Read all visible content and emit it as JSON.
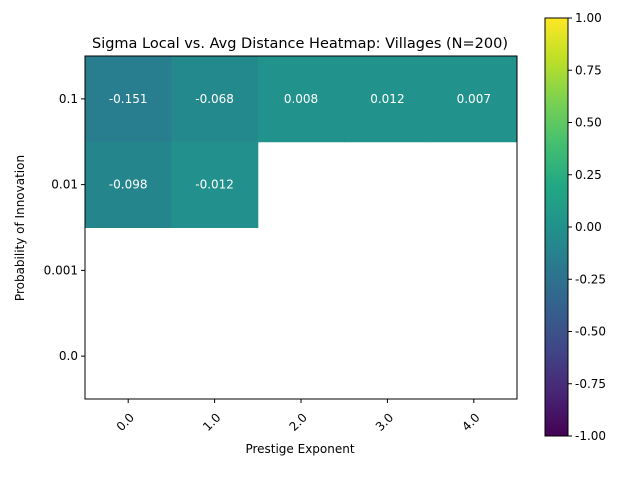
{
  "chart_data": {
    "type": "heatmap",
    "title": "Sigma Local vs. Avg Distance Heatmap: Villages (N=200)",
    "xlabel": "Prestige Exponent",
    "ylabel": "Probability of Innovation",
    "x_categories": [
      "0.0",
      "1.0",
      "2.0",
      "3.0",
      "4.0"
    ],
    "y_categories": [
      "0.1",
      "0.01",
      "0.001",
      "0.0"
    ],
    "values": [
      [
        -0.151,
        -0.068,
        0.008,
        0.012,
        0.007
      ],
      [
        -0.098,
        -0.012,
        null,
        null,
        null
      ],
      [
        null,
        null,
        null,
        null,
        null
      ],
      [
        null,
        null,
        null,
        null,
        null
      ]
    ],
    "value_labels": [
      [
        "-0.151",
        "-0.068",
        "0.008",
        "0.012",
        "0.007"
      ],
      [
        "-0.098",
        "-0.012",
        "",
        "",
        ""
      ],
      [
        "",
        "",
        "",
        "",
        ""
      ],
      [
        "",
        "",
        "",
        "",
        ""
      ]
    ],
    "colormap": "viridis",
    "vmin": -1.0,
    "vmax": 1.0,
    "colorbar_ticks": [
      "-1.00",
      "-0.75",
      "-0.50",
      "-0.25",
      "0.00",
      "0.25",
      "0.50",
      "0.75",
      "1.00"
    ],
    "colorbar_values": [
      -1.0,
      -0.75,
      -0.5,
      -0.25,
      0.0,
      0.25,
      0.5,
      0.75,
      1.0
    ],
    "missing_color": "#ffffff",
    "label_color": "#ffffff"
  }
}
